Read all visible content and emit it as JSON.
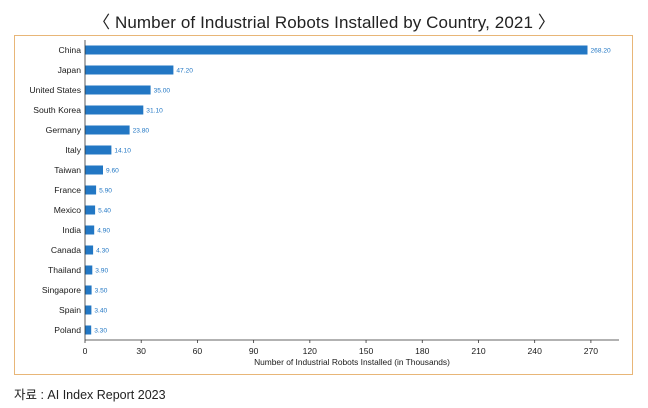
{
  "header": {
    "title": "〈 Number of Industrial Robots Installed by Country, 2021 〉"
  },
  "footer": {
    "source": "자료 : AI Index Report 2023"
  },
  "colors": {
    "bar": "#2277c4",
    "value_label": "#2277c4",
    "frame_border": "#e8b678"
  },
  "chart_data": {
    "type": "bar",
    "orientation": "horizontal",
    "title": "〈 Number of Industrial Robots Installed by Country, 2021 〉",
    "xlabel": "Number of Industrial Robots Installed (in Thousands)",
    "ylabel": "",
    "xlim": [
      0,
      285
    ],
    "xticks": [
      0,
      30,
      60,
      90,
      120,
      150,
      180,
      210,
      240,
      270
    ],
    "grid": false,
    "categories": [
      "China",
      "Japan",
      "United States",
      "South Korea",
      "Germany",
      "Italy",
      "Taiwan",
      "France",
      "Mexico",
      "India",
      "Canada",
      "Thailand",
      "Singapore",
      "Spain",
      "Poland"
    ],
    "values": [
      268.2,
      47.2,
      35.0,
      31.1,
      23.8,
      14.1,
      9.6,
      5.9,
      5.4,
      4.9,
      4.3,
      3.9,
      3.5,
      3.4,
      3.3
    ],
    "value_labels": [
      "268.20",
      "47.20",
      "35.00",
      "31.10",
      "23.80",
      "14.10",
      "9.60",
      "5.90",
      "5.40",
      "4.90",
      "4.30",
      "3.90",
      "3.50",
      "3.40",
      "3.30"
    ]
  }
}
